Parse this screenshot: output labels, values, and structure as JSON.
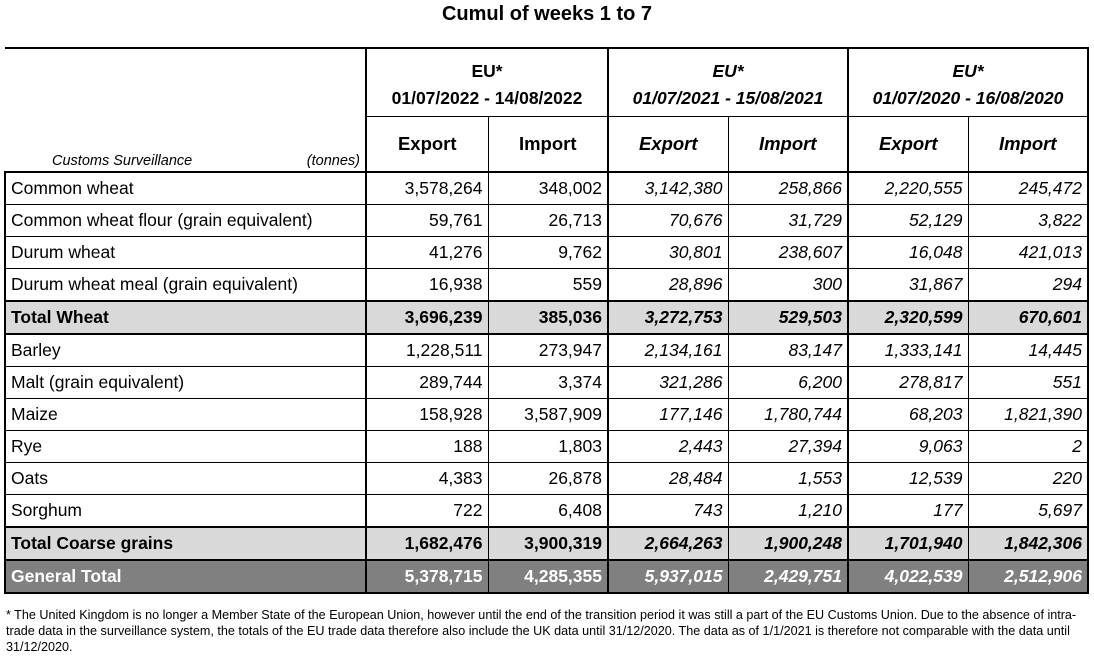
{
  "title": "Cumul of weeks 1 to 7",
  "label_header": {
    "left": "Customs Surveillance",
    "unit": "(tonnes)"
  },
  "periods": [
    {
      "region": "EU*",
      "dates": "01/07/2022 - 14/08/2022",
      "export": "Export",
      "import": "Import"
    },
    {
      "region": "EU*",
      "dates": "01/07/2021 - 15/08/2021",
      "export": "Export",
      "import": "Import"
    },
    {
      "region": "EU*",
      "dates": "01/07/2020 - 16/08/2020",
      "export": "Export",
      "import": "Import"
    }
  ],
  "rows": [
    {
      "label": "Common wheat",
      "v": [
        "3,578,264",
        "348,002",
        "3,142,380",
        "258,866",
        "2,220,555",
        "245,472"
      ]
    },
    {
      "label": "Common wheat flour (grain equivalent)",
      "v": [
        "59,761",
        "26,713",
        "70,676",
        "31,729",
        "52,129",
        "3,822"
      ]
    },
    {
      "label": "Durum wheat",
      "v": [
        "41,276",
        "9,762",
        "30,801",
        "238,607",
        "16,048",
        "421,013"
      ]
    },
    {
      "label": "Durum wheat meal (grain equivalent)",
      "v": [
        "16,938",
        "559",
        "28,896",
        "300",
        "31,867",
        "294"
      ]
    },
    {
      "label": "Total Wheat",
      "v": [
        "3,696,239",
        "385,036",
        "3,272,753",
        "529,503",
        "2,320,599",
        "670,601"
      ]
    },
    {
      "label": "Barley",
      "v": [
        "1,228,511",
        "273,947",
        "2,134,161",
        "83,147",
        "1,333,141",
        "14,445"
      ]
    },
    {
      "label": "Malt (grain equivalent)",
      "v": [
        "289,744",
        "3,374",
        "321,286",
        "6,200",
        "278,817",
        "551"
      ]
    },
    {
      "label": "Maize",
      "v": [
        "158,928",
        "3,587,909",
        "177,146",
        "1,780,744",
        "68,203",
        "1,821,390"
      ]
    },
    {
      "label": "Rye",
      "v": [
        "188",
        "1,803",
        "2,443",
        "27,394",
        "9,063",
        "2"
      ]
    },
    {
      "label": "Oats",
      "v": [
        "4,383",
        "26,878",
        "28,484",
        "1,553",
        "12,539",
        "220"
      ]
    },
    {
      "label": "Sorghum",
      "v": [
        "722",
        "6,408",
        "743",
        "1,210",
        "177",
        "5,697"
      ]
    },
    {
      "label": "Total Coarse grains",
      "v": [
        "1,682,476",
        "3,900,319",
        "2,664,263",
        "1,900,248",
        "1,701,940",
        "1,842,306"
      ]
    },
    {
      "label": "General Total",
      "v": [
        "5,378,715",
        "4,285,355",
        "5,937,015",
        "2,429,751",
        "4,022,539",
        "2,512,906"
      ]
    }
  ],
  "footnote": "* The United Kingdom is no longer a Member State of the European Union, however until the end of the transition period it was still a part of the EU Customs Union. Due to the absence of intra-trade data in the surveillance system, the totals of the EU trade data  therefore also include the UK data until 31/12/2020. The data as of 1/1/2021 is therefore not comparable with the data until 31/12/2020."
}
